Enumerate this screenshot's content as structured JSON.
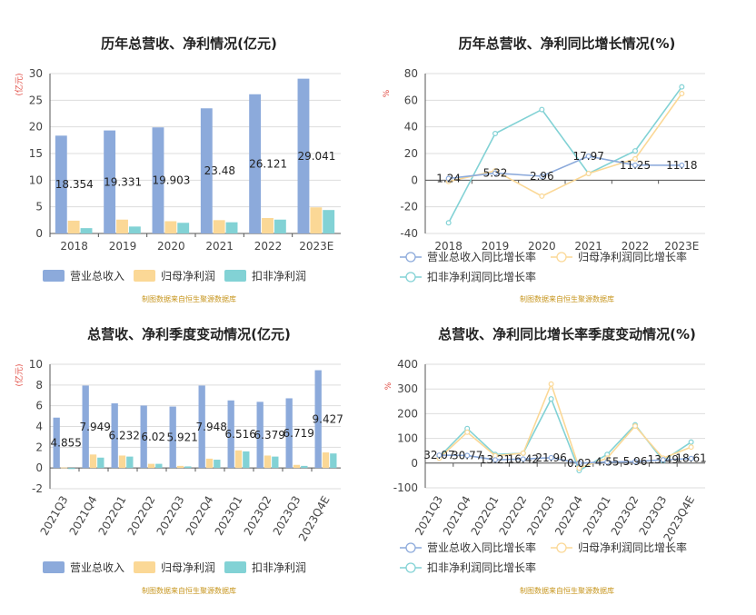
{
  "colors": {
    "revenue": "#8caadb",
    "net_profit": "#fbd896",
    "deducted_profit": "#82d2d5",
    "unit_red": "#e0483f",
    "source_gold": "#c7961f",
    "axis": "#666666",
    "grid": "#dddddd"
  },
  "source_note": "制图数据来自恒生聚源数据库",
  "chart_data": [
    {
      "type": "bar",
      "title": "历年总营收、净利情况(亿元)",
      "unit": "(亿元)",
      "categories": [
        "2018",
        "2019",
        "2020",
        "2021",
        "2022",
        "2023E"
      ],
      "ylim": [
        0,
        30
      ],
      "yticks": [
        0,
        5,
        10,
        15,
        20,
        25,
        30
      ],
      "series": [
        {
          "name": "营业总收入",
          "values": [
            18.354,
            19.331,
            19.903,
            23.48,
            26.121,
            29.041
          ],
          "labels": [
            "18.354",
            "19.331",
            "19.903",
            "23.48",
            "26.121",
            "29.041"
          ]
        },
        {
          "name": "归母净利润",
          "values": [
            2.4,
            2.6,
            2.3,
            2.5,
            2.9,
            4.9
          ]
        },
        {
          "name": "扣非净利润",
          "values": [
            1.0,
            1.3,
            2.0,
            2.1,
            2.6,
            4.4
          ]
        }
      ],
      "grid": true,
      "legend": "bottom"
    },
    {
      "type": "line",
      "title": "历年总营收、净利同比增长情况(%)",
      "unit": "%",
      "categories": [
        "2018",
        "2019",
        "2020",
        "2021",
        "2022",
        "2023E"
      ],
      "ylim": [
        -40,
        80
      ],
      "yticks": [
        -40,
        -20,
        0,
        20,
        40,
        60,
        80
      ],
      "series": [
        {
          "name": "营业总收入同比增长率",
          "values": [
            1.24,
            5.32,
            2.96,
            17.97,
            11.25,
            11.18
          ],
          "labels": [
            "1.24",
            "5.32",
            "2.96",
            "17.97",
            "11.25",
            "11.18"
          ]
        },
        {
          "name": "归母净利润同比增长率",
          "values": [
            -1,
            7,
            -12,
            5,
            16,
            65
          ]
        },
        {
          "name": "扣非净利润同比增长率",
          "values": [
            -32,
            35,
            53,
            5,
            22,
            70
          ]
        }
      ],
      "grid": true,
      "legend": "bottom"
    },
    {
      "type": "bar",
      "title": "总营收、净利季度变动情况(亿元)",
      "unit": "(亿元)",
      "categories": [
        "2021Q3",
        "2021Q4",
        "2022Q1",
        "2022Q2",
        "2022Q3",
        "2022Q4",
        "2023Q1",
        "2023Q2",
        "2023Q3",
        "2023Q4E"
      ],
      "ylim": [
        -2,
        10
      ],
      "yticks": [
        -2,
        0,
        2,
        4,
        6,
        8,
        10
      ],
      "series": [
        {
          "name": "营业总收入",
          "values": [
            4.855,
            7.949,
            6.232,
            6.02,
            5.921,
            7.948,
            6.516,
            6.379,
            6.719,
            9.427
          ],
          "labels": [
            "4.855",
            "7.949",
            "6.232",
            "6.02",
            "5.921",
            "7.948",
            "6.516",
            "6.379",
            "6.719",
            "9.427"
          ]
        },
        {
          "name": "归母净利润",
          "values": [
            0.05,
            1.3,
            1.2,
            0.4,
            0.2,
            0.9,
            1.7,
            1.2,
            0.3,
            1.5
          ]
        },
        {
          "name": "扣非净利润",
          "values": [
            -0.1,
            1.0,
            1.1,
            0.4,
            0.15,
            0.8,
            1.6,
            1.1,
            0.2,
            1.4
          ]
        }
      ],
      "grid": true,
      "legend": "bottom"
    },
    {
      "type": "line",
      "title": "总营收、净利同比增长率季度变动情况(%)",
      "unit": "%",
      "categories": [
        "2021Q3",
        "2021Q4",
        "2022Q1",
        "2022Q2",
        "2022Q3",
        "2022Q4",
        "2023Q1",
        "2023Q2",
        "2023Q3",
        "2023Q4E"
      ],
      "ylim": [
        -100,
        400
      ],
      "yticks": [
        -100,
        0,
        100,
        200,
        300,
        400
      ],
      "series": [
        {
          "name": "营业总收入同比增长率",
          "values": [
            32.07,
            30.77,
            13.21,
            16.42,
            21.96,
            0.02,
            4.55,
            5.96,
            13.49,
            18.61
          ],
          "labels": [
            "32.07",
            "30.77",
            "13.21",
            "16.42",
            "21.96",
            "0.02",
            "4.55",
            "5.96",
            "13.49",
            "18.61"
          ]
        },
        {
          "name": "归母净利润同比增长率",
          "values": [
            20,
            125,
            30,
            40,
            320,
            -20,
            20,
            150,
            20,
            65
          ]
        },
        {
          "name": "扣非净利润同比增长率",
          "values": [
            25,
            140,
            35,
            40,
            260,
            -30,
            35,
            155,
            10,
            85
          ]
        }
      ],
      "grid": true,
      "legend": "bottom"
    }
  ]
}
